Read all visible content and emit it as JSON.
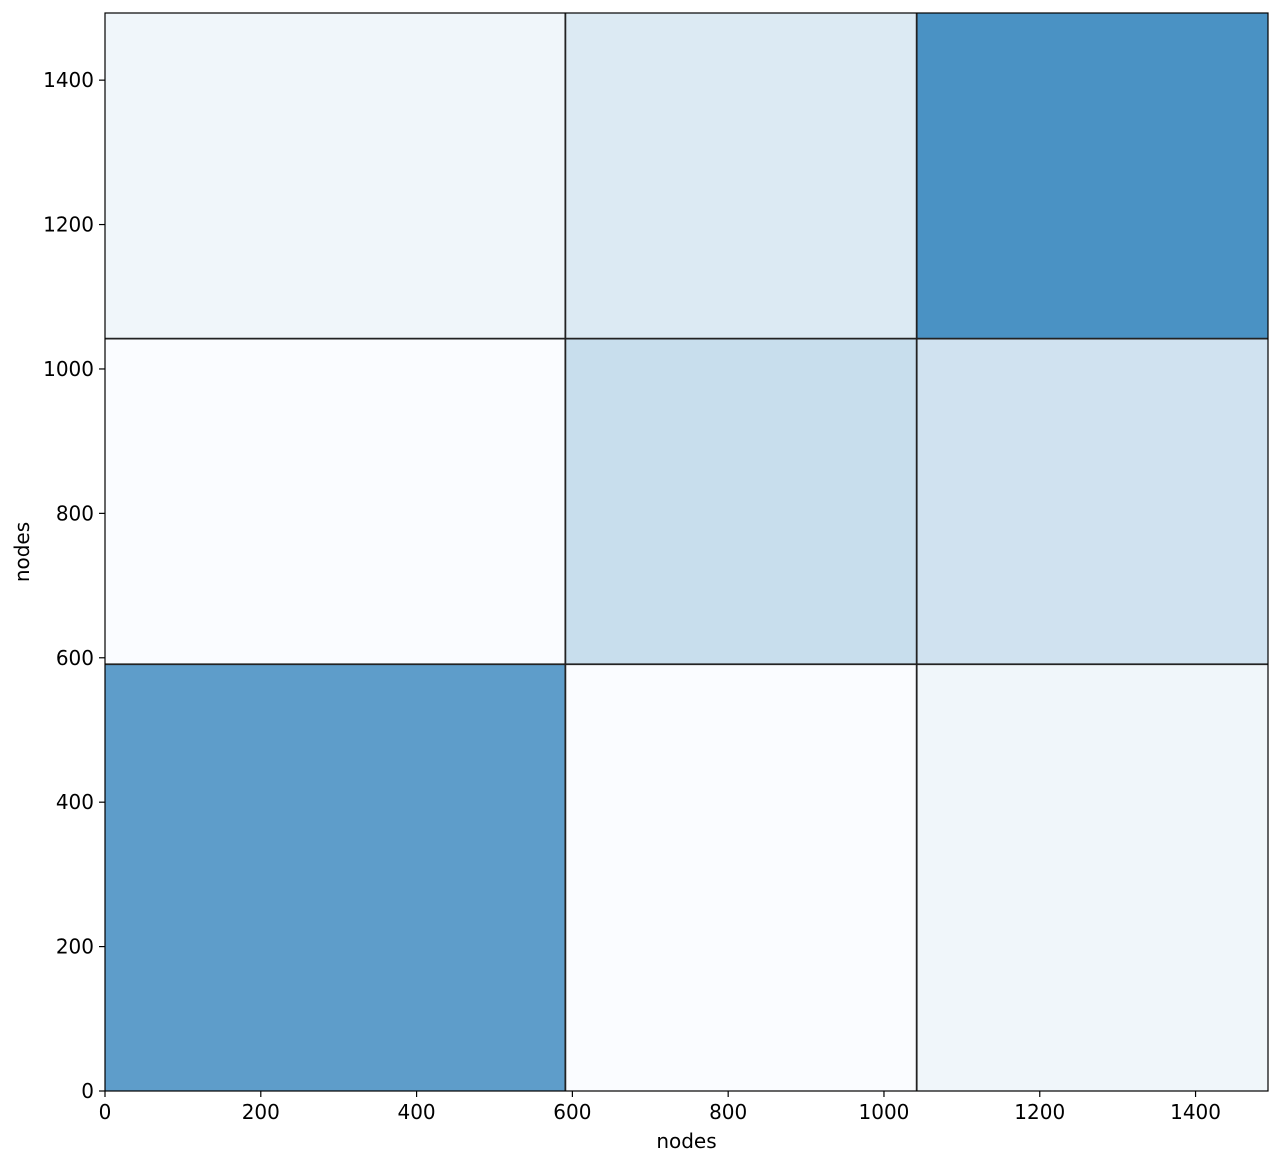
{
  "chart_data": {
    "type": "heatmap",
    "title": "",
    "xlabel": "nodes",
    "ylabel": "nodes",
    "xlim": [
      0,
      1493
    ],
    "ylim": [
      0,
      1493
    ],
    "x_ticks": [
      0,
      200,
      400,
      600,
      800,
      1000,
      1200,
      1400
    ],
    "y_ticks": [
      0,
      200,
      400,
      600,
      800,
      1000,
      1200,
      1400
    ],
    "block_boundaries": [
      0,
      591,
      1042,
      1493
    ],
    "grid_lines": [
      591,
      1042
    ],
    "colormap": "Blues",
    "blocks": [
      {
        "row": 0,
        "col": 0,
        "x": [
          0,
          591
        ],
        "y": [
          0,
          591
        ],
        "color": "#5e9dca"
      },
      {
        "row": 0,
        "col": 1,
        "x": [
          591,
          1042
        ],
        "y": [
          0,
          591
        ],
        "color": "#fafcff"
      },
      {
        "row": 0,
        "col": 2,
        "x": [
          1042,
          1493
        ],
        "y": [
          0,
          591
        ],
        "color": "#f0f6fa"
      },
      {
        "row": 1,
        "col": 0,
        "x": [
          0,
          591
        ],
        "y": [
          591,
          1042
        ],
        "color": "#fafcff"
      },
      {
        "row": 1,
        "col": 1,
        "x": [
          591,
          1042
        ],
        "y": [
          591,
          1042
        ],
        "color": "#c8deed"
      },
      {
        "row": 1,
        "col": 2,
        "x": [
          1042,
          1493
        ],
        "y": [
          591,
          1042
        ],
        "color": "#d0e2f0"
      },
      {
        "row": 2,
        "col": 0,
        "x": [
          0,
          591
        ],
        "y": [
          1042,
          1493
        ],
        "color": "#f0f6fa"
      },
      {
        "row": 2,
        "col": 1,
        "x": [
          591,
          1042
        ],
        "y": [
          1042,
          1493
        ],
        "color": "#dceaf3"
      },
      {
        "row": 2,
        "col": 2,
        "x": [
          1042,
          1493
        ],
        "y": [
          1042,
          1493
        ],
        "color": "#4a92c4"
      }
    ]
  }
}
